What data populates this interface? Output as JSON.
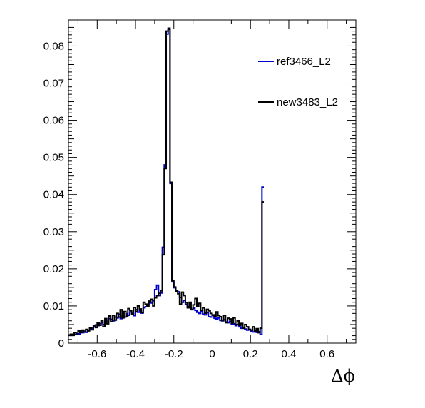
{
  "chart_data": {
    "type": "histogram",
    "xlabel": "Δϕ",
    "ylabel": "",
    "xlim": [
      -0.75,
      0.75
    ],
    "ylim": [
      0,
      0.087
    ],
    "bin_width": 0.01,
    "x_ticks": [
      -0.6,
      -0.4,
      -0.2,
      0,
      0.2,
      0.4,
      0.6
    ],
    "x_tick_labels": [
      "-0.6",
      "-0.4",
      "-0.2",
      "0",
      "0.2",
      "0.4",
      "0.6"
    ],
    "y_ticks": [
      0,
      0.01,
      0.02,
      0.03,
      0.04,
      0.05,
      0.06,
      0.07,
      0.08
    ],
    "y_tick_labels": [
      "0",
      "0.01",
      "0.02",
      "0.03",
      "0.04",
      "0.05",
      "0.06",
      "0.07",
      "0.08"
    ],
    "grid": false,
    "legend_position": "top-right",
    "series": [
      {
        "name": "ref3466_L2",
        "color": "#0000cc",
        "values": [
          0.0021,
          0.0021,
          0.0022,
          0.0023,
          0.0026,
          0.0025,
          0.0033,
          0.0028,
          0.0032,
          0.0029,
          0.0034,
          0.0038,
          0.004,
          0.0045,
          0.0049,
          0.0047,
          0.0052,
          0.0055,
          0.005,
          0.0061,
          0.0057,
          0.0066,
          0.0064,
          0.006,
          0.007,
          0.0068,
          0.0078,
          0.0066,
          0.0073,
          0.007,
          0.0079,
          0.0075,
          0.0084,
          0.008,
          0.0074,
          0.009,
          0.0083,
          0.0088,
          0.0081,
          0.0095,
          0.0098,
          0.0103,
          0.0111,
          0.0108,
          0.0114,
          0.0144,
          0.0156,
          0.0128,
          0.0135,
          0.0258,
          0.048,
          0.0832,
          0.0845,
          0.043,
          0.0165,
          0.0149,
          0.0142,
          0.0138,
          0.0123,
          0.011,
          0.0115,
          0.0104,
          0.0098,
          0.0096,
          0.009,
          0.0094,
          0.0088,
          0.0083,
          0.008,
          0.0085,
          0.0078,
          0.0076,
          0.0082,
          0.0071,
          0.007,
          0.0075,
          0.0067,
          0.0065,
          0.0068,
          0.0061,
          0.006,
          0.0063,
          0.0057,
          0.0055,
          0.0059,
          0.005,
          0.0052,
          0.0047,
          0.005,
          0.0044,
          0.004,
          0.0042,
          0.0038,
          0.0035,
          0.0037,
          0.0032,
          0.003,
          0.0033,
          0.0029,
          0.0031,
          0.0023,
          0.042
        ]
      },
      {
        "name": "new3483_L2",
        "color": "#000000",
        "values": [
          0.0022,
          0.0024,
          0.0021,
          0.0028,
          0.0024,
          0.0033,
          0.0029,
          0.0035,
          0.003,
          0.0037,
          0.0033,
          0.0041,
          0.0036,
          0.0047,
          0.0042,
          0.0055,
          0.0048,
          0.006,
          0.0045,
          0.0066,
          0.0052,
          0.0073,
          0.0058,
          0.0075,
          0.0062,
          0.008,
          0.007,
          0.009,
          0.0068,
          0.0085,
          0.0073,
          0.0093,
          0.0088,
          0.0078,
          0.0096,
          0.0085,
          0.01,
          0.0092,
          0.0082,
          0.011,
          0.0105,
          0.0098,
          0.0113,
          0.0118,
          0.01,
          0.0122,
          0.0128,
          0.0134,
          0.0141,
          0.0238,
          0.047,
          0.084,
          0.0848,
          0.0433,
          0.0168,
          0.0151,
          0.014,
          0.0133,
          0.0105,
          0.0137,
          0.0128,
          0.0109,
          0.0095,
          0.011,
          0.0091,
          0.0103,
          0.012,
          0.0098,
          0.0107,
          0.0088,
          0.0095,
          0.0081,
          0.0091,
          0.0087,
          0.008,
          0.0076,
          0.0072,
          0.0084,
          0.0074,
          0.0071,
          0.0061,
          0.0075,
          0.0055,
          0.0067,
          0.0065,
          0.0054,
          0.0068,
          0.005,
          0.006,
          0.0048,
          0.0053,
          0.004,
          0.005,
          0.0044,
          0.0037,
          0.0035,
          0.0044,
          0.0033,
          0.0039,
          0.0028,
          0.004,
          0.038
        ]
      }
    ]
  }
}
